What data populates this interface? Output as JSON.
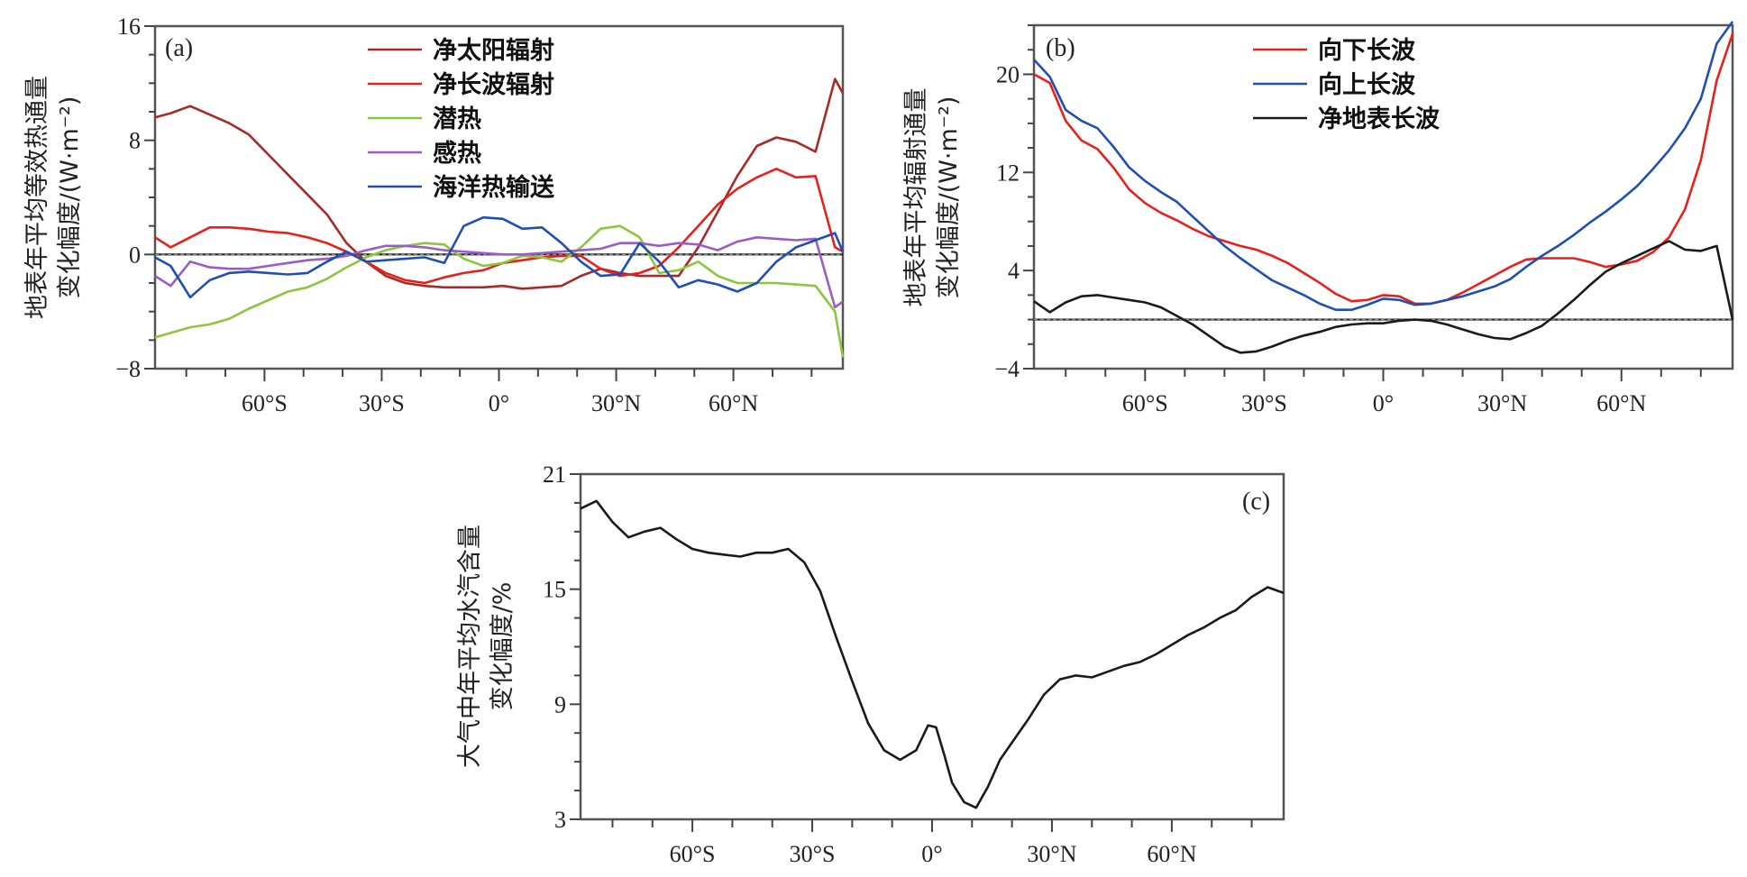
{
  "chart_data": [
    {
      "id": "a",
      "type": "line",
      "panel_label": "(a)",
      "title": "",
      "xlabel": "",
      "ylabel_lines": [
        "地表年平均等效热通量",
        "变化幅度/(W·m⁻²)"
      ],
      "xlim": [
        -88,
        88
      ],
      "ylim": [
        -8,
        16
      ],
      "x_ticks": [
        -60,
        -30,
        0,
        30,
        60
      ],
      "x_tick_labels": [
        "60°S",
        "30°S",
        "0°",
        "30°N",
        "60°N"
      ],
      "y_ticks": [
        -8,
        0,
        8,
        16
      ],
      "y_tick_labels": [
        "−8",
        "0",
        "8",
        "16"
      ],
      "zero_line": true,
      "legend_position": "top-center",
      "x": [
        -88,
        -84,
        -79,
        -74,
        -69,
        -64,
        -59,
        -54,
        -49,
        -44,
        -39,
        -34,
        -29,
        -24,
        -19,
        -14,
        -9,
        -4,
        1,
        6,
        11,
        16,
        21,
        26,
        31,
        36,
        41,
        46,
        51,
        56,
        61,
        66,
        71,
        76,
        81,
        86,
        88
      ],
      "series": [
        {
          "name": "净太阳辐射",
          "color": "#a52a2a",
          "values": [
            9.6,
            9.9,
            10.4,
            9.8,
            9.2,
            8.4,
            7.0,
            5.6,
            4.2,
            2.8,
            0.8,
            -0.5,
            -1.5,
            -2.0,
            -2.2,
            -2.3,
            -2.3,
            -2.3,
            -2.2,
            -2.4,
            -2.3,
            -2.2,
            -1.5,
            -1.0,
            -1.3,
            -1.5,
            -1.5,
            -1.5,
            0.5,
            3.0,
            5.5,
            7.6,
            8.2,
            7.9,
            7.2,
            12.3,
            11.3
          ]
        },
        {
          "name": "净长波辐射",
          "color": "#e8201c",
          "values": [
            1.2,
            0.5,
            1.2,
            1.9,
            1.9,
            1.8,
            1.6,
            1.5,
            1.2,
            0.8,
            0.2,
            -0.5,
            -1.3,
            -1.8,
            -2.0,
            -1.6,
            -1.3,
            -1.1,
            -0.6,
            -0.4,
            -0.2,
            -0.1,
            -0.1,
            -1.0,
            -1.5,
            -1.3,
            -0.8,
            0.5,
            2.0,
            3.5,
            4.6,
            5.4,
            6.0,
            5.4,
            5.5,
            0.5,
            0.2
          ]
        },
        {
          "name": "潜热",
          "color": "#8cc63f",
          "values": [
            -5.8,
            -5.5,
            -5.1,
            -4.9,
            -4.5,
            -3.8,
            -3.2,
            -2.6,
            -2.3,
            -1.7,
            -0.9,
            -0.2,
            0.3,
            0.6,
            0.8,
            0.7,
            -0.3,
            -0.8,
            -0.6,
            -0.1,
            -0.2,
            -0.5,
            0.5,
            1.8,
            2.0,
            1.2,
            -1.3,
            -1.1,
            -0.5,
            -1.5,
            -2.0,
            -2.0,
            -2.0,
            -2.1,
            -2.2,
            -4.0,
            -7.2
          ]
        },
        {
          "name": "感热",
          "color": "#9a5cc6",
          "values": [
            -1.5,
            -2.2,
            -0.5,
            -0.9,
            -1.0,
            -1.0,
            -0.8,
            -0.6,
            -0.4,
            -0.3,
            -0.1,
            0.3,
            0.6,
            0.6,
            0.5,
            0.3,
            0.2,
            0.1,
            0.0,
            0.0,
            0.1,
            0.2,
            0.3,
            0.4,
            0.8,
            0.8,
            0.6,
            0.8,
            0.7,
            0.3,
            0.9,
            1.2,
            1.1,
            1.0,
            1.1,
            -3.7,
            -3.3
          ]
        },
        {
          "name": "海洋热输送",
          "color": "#1f4fb4",
          "values": [
            -0.2,
            -0.8,
            -3.0,
            -1.8,
            -1.3,
            -1.2,
            -1.3,
            -1.4,
            -1.3,
            -0.5,
            0.2,
            -0.5,
            -0.4,
            -0.3,
            -0.2,
            -0.6,
            2.0,
            2.6,
            2.5,
            1.8,
            1.9,
            0.8,
            -0.5,
            -1.5,
            -1.4,
            0.8,
            -0.5,
            -2.3,
            -1.8,
            -2.1,
            -2.6,
            -2.0,
            -0.5,
            0.5,
            1.0,
            1.5,
            0.2
          ]
        }
      ]
    },
    {
      "id": "b",
      "type": "line",
      "panel_label": "(b)",
      "title": "",
      "xlabel": "",
      "ylabel_lines": [
        "地表年平均辐射通量",
        "变化幅度/(W·m⁻²)"
      ],
      "xlim": [
        -88,
        88
      ],
      "ylim": [
        -4,
        24
      ],
      "x_ticks": [
        -60,
        -30,
        0,
        30,
        60
      ],
      "x_tick_labels": [
        "60°S",
        "30°S",
        "0°",
        "30°N",
        "60°N"
      ],
      "y_ticks": [
        -4,
        4,
        12,
        20
      ],
      "y_tick_labels": [
        "−4",
        "4",
        "12",
        "20"
      ],
      "zero_line": true,
      "legend_position": "top-center",
      "x": [
        -88,
        -84,
        -80,
        -76,
        -72,
        -68,
        -64,
        -60,
        -56,
        -52,
        -48,
        -44,
        -40,
        -36,
        -32,
        -28,
        -24,
        -20,
        -16,
        -12,
        -8,
        -4,
        0,
        4,
        8,
        12,
        16,
        20,
        24,
        28,
        32,
        36,
        40,
        44,
        48,
        52,
        56,
        60,
        64,
        68,
        72,
        76,
        80,
        84,
        88
      ],
      "series": [
        {
          "name": "向下长波",
          "color": "#e8201c",
          "values": [
            20.0,
            19.3,
            16.2,
            14.6,
            13.9,
            12.4,
            10.6,
            9.5,
            8.7,
            8.1,
            7.4,
            6.8,
            6.4,
            6.0,
            5.7,
            5.2,
            4.6,
            3.8,
            3.0,
            2.1,
            1.5,
            1.6,
            2.0,
            1.9,
            1.3,
            1.3,
            1.6,
            2.2,
            2.9,
            3.6,
            4.3,
            4.9,
            5.0,
            5.0,
            5.0,
            4.7,
            4.3,
            4.5,
            4.8,
            5.5,
            6.7,
            9.0,
            13.0,
            19.5,
            23.3
          ]
        },
        {
          "name": "向上长波",
          "color": "#1f4fb4",
          "values": [
            21.2,
            19.8,
            17.1,
            16.2,
            15.6,
            14.1,
            12.4,
            11.3,
            10.4,
            9.6,
            8.4,
            7.2,
            6.0,
            5.0,
            4.1,
            3.2,
            2.6,
            2.0,
            1.3,
            0.8,
            0.8,
            1.2,
            1.7,
            1.6,
            1.2,
            1.3,
            1.6,
            1.9,
            2.3,
            2.7,
            3.3,
            4.3,
            5.2,
            6.0,
            6.9,
            7.9,
            8.8,
            9.8,
            10.9,
            12.3,
            13.8,
            15.6,
            18.0,
            22.5,
            24.3
          ]
        },
        {
          "name": "净地表长波",
          "color": "#1a1a1a",
          "values": [
            1.5,
            0.6,
            1.4,
            1.9,
            2.0,
            1.8,
            1.6,
            1.4,
            1.0,
            0.3,
            -0.4,
            -1.3,
            -2.2,
            -2.7,
            -2.6,
            -2.2,
            -1.7,
            -1.3,
            -1.0,
            -0.6,
            -0.4,
            -0.3,
            -0.3,
            -0.1,
            0.0,
            -0.1,
            -0.4,
            -0.8,
            -1.2,
            -1.5,
            -1.6,
            -1.1,
            -0.5,
            0.5,
            1.6,
            2.8,
            3.9,
            4.6,
            5.2,
            5.8,
            6.4,
            5.7,
            5.6,
            6.0,
            0.0
          ]
        }
      ]
    },
    {
      "id": "c",
      "type": "line",
      "panel_label": "(c)",
      "title": "",
      "xlabel": "",
      "ylabel_lines": [
        "大气中年平均水汽含量",
        "变化幅度/%"
      ],
      "xlim": [
        -88,
        88
      ],
      "ylim": [
        3,
        21
      ],
      "x_ticks": [
        -60,
        -30,
        0,
        30,
        60
      ],
      "x_tick_labels": [
        "60°S",
        "30°S",
        "0°",
        "30°N",
        "60°N"
      ],
      "y_ticks": [
        3,
        9,
        15,
        21
      ],
      "y_tick_labels": [
        "3",
        "9",
        "15",
        "21"
      ],
      "zero_line": false,
      "legend_position": "none",
      "x": [
        -88,
        -84,
        -80,
        -76,
        -72,
        -68,
        -64,
        -60,
        -56,
        -52,
        -48,
        -44,
        -40,
        -36,
        -32,
        -28,
        -24,
        -20,
        -16,
        -12,
        -8,
        -4,
        -1,
        1,
        3,
        5,
        8,
        11,
        14,
        17,
        20,
        24,
        28,
        32,
        36,
        40,
        44,
        48,
        52,
        56,
        60,
        64,
        68,
        72,
        76,
        80,
        84,
        88
      ],
      "series": [
        {
          "name": "水汽含量",
          "color": "#1a1a1a",
          "values": [
            19.2,
            19.6,
            18.5,
            17.7,
            18.0,
            18.2,
            17.6,
            17.1,
            16.9,
            16.8,
            16.7,
            16.9,
            16.9,
            17.1,
            16.4,
            14.9,
            12.5,
            10.2,
            8.0,
            6.6,
            6.1,
            6.6,
            7.9,
            7.8,
            6.4,
            4.9,
            3.9,
            3.6,
            4.7,
            6.1,
            7.0,
            8.2,
            9.5,
            10.3,
            10.5,
            10.4,
            10.7,
            11.0,
            11.2,
            11.6,
            12.1,
            12.6,
            13.0,
            13.5,
            13.9,
            14.6,
            15.1,
            14.8
          ]
        }
      ]
    }
  ]
}
